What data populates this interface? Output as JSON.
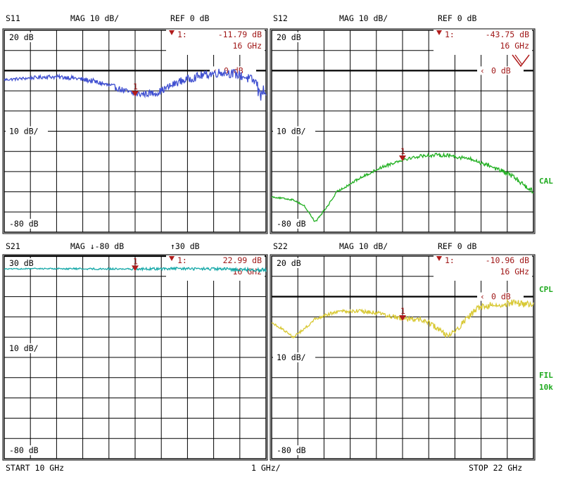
{
  "colors": {
    "s11": "#3f4fd0",
    "s12": "#22b022",
    "s21": "#16a8a8",
    "s22": "#d8c833",
    "marker": "#b01c1c",
    "grid": "#000000",
    "status": "#1faa1f"
  },
  "side_status": {
    "cal": "CAL",
    "cpl": "CPL",
    "fil": "FIL",
    "fil_bw": "10k"
  },
  "footer": {
    "start": "START  10 GHz",
    "span": "1 GHz/",
    "stop": "STOP 22 GHz"
  },
  "chart_data": [
    {
      "type": "line",
      "title": "S11",
      "format": "MAG 10 dB/",
      "ref_label": "REF 0 dB",
      "x_range_ghz": [
        10,
        22
      ],
      "ylim": [
        -80,
        20
      ],
      "y_labels": [
        "20 dB",
        "10 dB/",
        "-80 dB"
      ],
      "ref_marker_label": "0 dB",
      "marker": {
        "index": "1",
        "label": "1:",
        "value": "-11.79 dB",
        "freq": "16 GHz",
        "freq_ghz": 16,
        "y": -11.79
      },
      "series": [
        {
          "color_key": "s11",
          "noise": 1.6,
          "x": [
            10,
            11,
            12,
            13,
            14,
            15,
            16,
            17,
            18,
            19,
            19.5,
            20,
            20.5,
            21,
            21.5,
            22
          ],
          "y": [
            -4.5,
            -3.8,
            -3.0,
            -3.4,
            -5.0,
            -8.0,
            -11.8,
            -11.0,
            -5.5,
            -2.5,
            -1.5,
            -0.8,
            -1.5,
            -3.0,
            -5.5,
            -10.0
          ]
        }
      ]
    },
    {
      "type": "line",
      "title": "S12",
      "format": "MAG 10 dB/",
      "ref_label": "REF 0 dB",
      "x_range_ghz": [
        10,
        22
      ],
      "ylim": [
        -80,
        20
      ],
      "y_labels": [
        "20 dB",
        "10 dB/",
        "-80 dB"
      ],
      "ref_marker_label": "0 dB",
      "marker": {
        "index": "1",
        "label": "1:",
        "value": "-43.75 dB",
        "freq": "16 GHz",
        "freq_ghz": 16,
        "y": -43.75
      },
      "series": [
        {
          "color_key": "s12",
          "noise": 0.8,
          "x": [
            10,
            11,
            11.5,
            12,
            12.5,
            13,
            14,
            15,
            16,
            17,
            18,
            19,
            20,
            21,
            22
          ],
          "y": [
            -62.5,
            -64.0,
            -67.0,
            -75.0,
            -68.0,
            -60.0,
            -53.5,
            -48.0,
            -44.0,
            -42.0,
            -41.8,
            -43.5,
            -47.0,
            -52.0,
            -60.0
          ]
        }
      ]
    },
    {
      "type": "line",
      "title": "S21",
      "format": "MAG ↓-80 dB",
      "ref_label": "↑30 dB",
      "x_range_ghz": [
        10,
        22
      ],
      "ylim": [
        -80,
        30
      ],
      "y_labels": [
        "30 dB",
        "10 dB/",
        "-80 dB"
      ],
      "marker": {
        "index": "1",
        "label": "1:",
        "value": "22.99 dB",
        "freq": "16 GHz",
        "freq_ghz": 16,
        "y": 22.99
      },
      "series": [
        {
          "color_key": "s21",
          "noise": 0.6,
          "x": [
            10,
            12,
            14,
            16,
            18,
            20,
            22
          ],
          "y": [
            23.0,
            23.2,
            23.1,
            23.0,
            23.2,
            22.9,
            22.5
          ]
        }
      ]
    },
    {
      "type": "line",
      "title": "S22",
      "format": "MAG 10 dB/",
      "ref_label": "REF 0 dB",
      "x_range_ghz": [
        10,
        22
      ],
      "ylim": [
        -80,
        20
      ],
      "y_labels": [
        "20 dB",
        "10 dB/",
        "-80 dB"
      ],
      "ref_marker_label": "0 dB",
      "marker": {
        "index": "1",
        "label": "1:",
        "value": "-10.96 dB",
        "freq": "16 GHz",
        "freq_ghz": 16,
        "y": -10.96
      },
      "series": [
        {
          "color_key": "s22",
          "noise": 1.2,
          "x": [
            10,
            10.5,
            11,
            11.5,
            12,
            12.5,
            13,
            14,
            15,
            16,
            17,
            17.5,
            18,
            18.5,
            19,
            19.5,
            20,
            21,
            22
          ],
          "y": [
            -13.0,
            -16.0,
            -20.0,
            -16.0,
            -11.0,
            -9.0,
            -7.5,
            -7.0,
            -8.5,
            -11.0,
            -11.5,
            -15.0,
            -19.0,
            -16.0,
            -10.0,
            -5.5,
            -4.0,
            -3.0,
            -4.0
          ]
        }
      ]
    }
  ]
}
